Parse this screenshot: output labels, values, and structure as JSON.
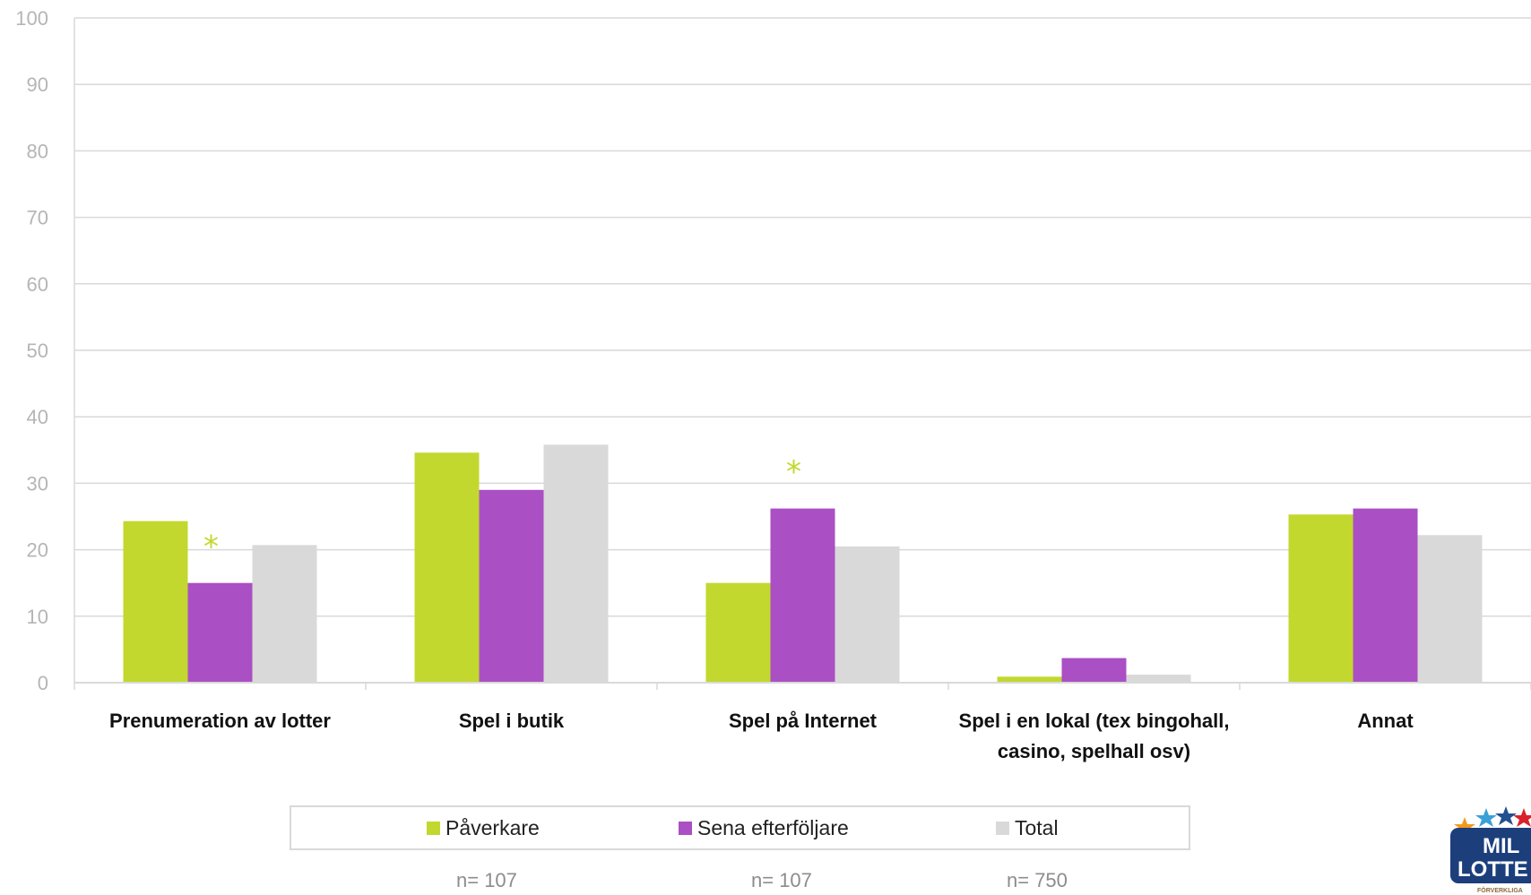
{
  "chart_data": {
    "type": "bar",
    "categories": [
      [
        "Prenumeration av lotter"
      ],
      [
        "Spel i butik"
      ],
      [
        "Spel på Internet"
      ],
      [
        "Spel i en lokal (tex bingohall,",
        "casino, spelhall osv)"
      ],
      [
        "Annat"
      ]
    ],
    "series": [
      {
        "name": "Påverkare",
        "color": "#c2d82e",
        "values": [
          24.3,
          34.6,
          15.0,
          0.9,
          25.3
        ]
      },
      {
        "name": "Sena efterföljare",
        "color": "#ab4fc4",
        "values": [
          15.0,
          29.0,
          26.2,
          3.7,
          26.2
        ]
      },
      {
        "name": "Total",
        "color": "#d9d9d9",
        "values": [
          20.7,
          35.8,
          20.5,
          1.2,
          22.2
        ]
      }
    ],
    "ylim": [
      0,
      100
    ],
    "yticks": [
      0,
      10,
      20,
      30,
      40,
      50,
      60,
      70,
      80,
      90,
      100
    ],
    "grid": true,
    "legend_position": "bottom",
    "annotations": [
      {
        "text": "*",
        "category": 0,
        "color": "#c2d82e"
      },
      {
        "text": "*",
        "category": 2,
        "color": "#c2d82e"
      }
    ],
    "sample_sizes": [
      "n= 107",
      "n= 107",
      "n= 750"
    ]
  },
  "logo": {
    "line1": "MIL",
    "line2": "LOTTE",
    "tagline": "FÖRVERKLIGA"
  }
}
